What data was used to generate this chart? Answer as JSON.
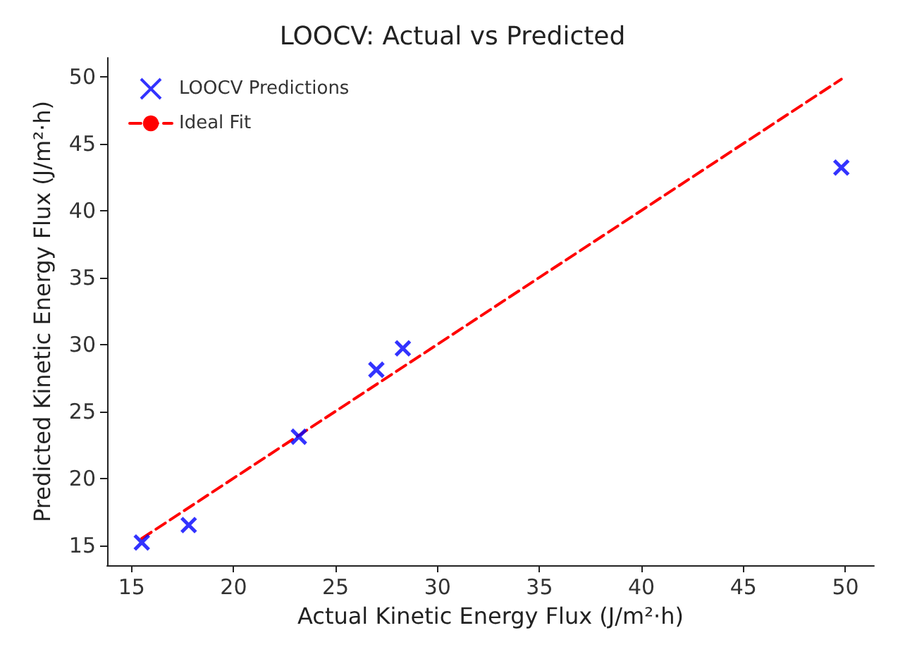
{
  "chart_data": {
    "type": "scatter",
    "title": "LOOCV: Actual vs Predicted",
    "xlabel": "Actual Kinetic Energy Flux (J/m²·h)",
    "ylabel": "Predicted Kinetic Energy Flux (J/m²·h)",
    "xlim": [
      13.8,
      51.4
    ],
    "ylim": [
      13.5,
      51.4
    ],
    "xticks": [
      15,
      20,
      25,
      30,
      35,
      40,
      45,
      50
    ],
    "yticks": [
      15,
      20,
      25,
      30,
      35,
      40,
      45,
      50
    ],
    "series": [
      {
        "name": "LOOCV Predictions",
        "color": "#0000ff",
        "marker": "cross",
        "x": [
          15.5,
          17.8,
          23.2,
          27.0,
          28.3,
          49.8
        ],
        "values": [
          15.2,
          16.5,
          23.1,
          28.1,
          29.7,
          43.2
        ]
      },
      {
        "name": "Ideal Fit",
        "type": "line",
        "color": "#ff0000",
        "line_style": "dashed",
        "marker": "none",
        "x": [
          15.5,
          49.8
        ],
        "values": [
          15.5,
          49.8
        ]
      }
    ],
    "legend": "top left",
    "grid": false
  }
}
